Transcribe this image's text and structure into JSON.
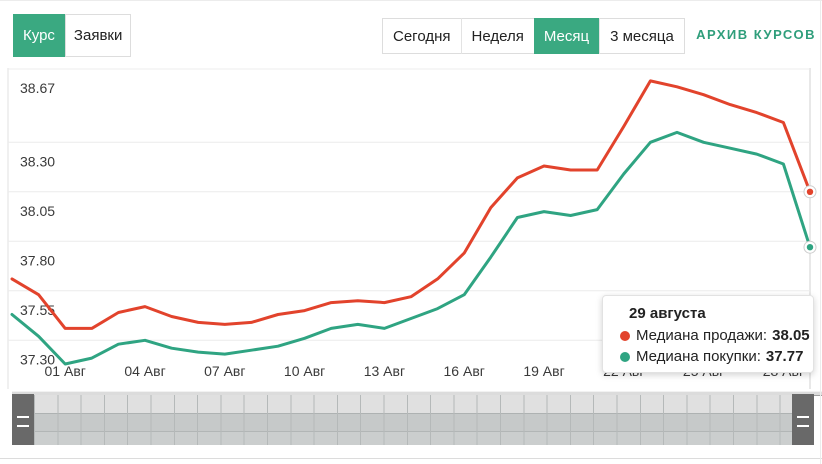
{
  "header": {
    "tabs": [
      {
        "label": "Курс",
        "active": true
      },
      {
        "label": "Заявки",
        "active": false
      }
    ],
    "periods": [
      {
        "label": "Сегодня",
        "active": false
      },
      {
        "label": "Неделя",
        "active": false
      },
      {
        "label": "Месяц",
        "active": true
      },
      {
        "label": "3 месяца",
        "active": false
      }
    ],
    "archive_link": "АРХИВ КУРСОВ"
  },
  "colors": {
    "accent_green": "#3aa981",
    "link_green": "#2f9e7b",
    "sell_red": "#e2432c",
    "buy_green": "#2fa482",
    "grid": "#ececec",
    "axis_text": "#3a3a3a"
  },
  "chart_data": {
    "type": "line",
    "title": "",
    "xlabel": "",
    "ylabel": "",
    "grid": true,
    "legend_position": "tooltip-only",
    "y_tick_labels": [
      "38.67",
      "38.30",
      "38.05",
      "37.80",
      "37.55",
      "37.30"
    ],
    "ylim": [
      37.1,
      38.72
    ],
    "x_tick_labels": [
      "01 Авг",
      "04 Авг",
      "07 Авг",
      "10 Авг",
      "13 Авг",
      "16 Авг",
      "19 Авг",
      "22 Авг",
      "25 Авг",
      "28 Авг"
    ],
    "x_tick_indices": [
      2,
      5,
      8,
      11,
      14,
      17,
      20,
      23,
      26,
      29
    ],
    "points_count": 31,
    "last_point_date": "29 августа",
    "series": [
      {
        "name": "Медиана продажи",
        "color": "#e2432c",
        "values": [
          37.61,
          37.53,
          37.36,
          37.36,
          37.44,
          37.47,
          37.42,
          37.39,
          37.38,
          37.39,
          37.43,
          37.45,
          37.49,
          37.5,
          37.49,
          37.52,
          37.61,
          37.74,
          37.97,
          38.12,
          38.18,
          38.16,
          38.16,
          38.38,
          38.61,
          38.58,
          38.54,
          38.49,
          38.45,
          38.4,
          38.05
        ]
      },
      {
        "name": "Медиана покупки",
        "color": "#2fa482",
        "values": [
          37.43,
          37.32,
          37.18,
          37.21,
          37.28,
          37.3,
          37.26,
          37.24,
          37.23,
          37.25,
          37.27,
          37.31,
          37.36,
          37.38,
          37.36,
          37.41,
          37.46,
          37.53,
          37.72,
          37.92,
          37.95,
          37.93,
          37.96,
          38.14,
          38.3,
          38.35,
          38.3,
          38.27,
          38.24,
          38.19,
          37.77
        ]
      }
    ]
  },
  "tooltip": {
    "date": "29 августа",
    "rows": [
      {
        "label": "Медиана продажи:",
        "value": "38.05",
        "color": "#e2432c"
      },
      {
        "label": "Медиана покупки:",
        "value": "37.77",
        "color": "#2fa482"
      }
    ]
  }
}
